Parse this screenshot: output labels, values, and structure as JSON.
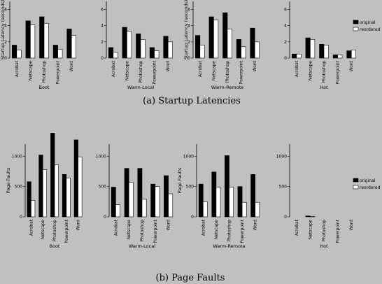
{
  "figure": {
    "captions": {
      "latency": "(a) Startup Latencies",
      "faults": "(b) Page Faults"
    },
    "legend_entries": [
      "original",
      "reordered"
    ],
    "colors": {
      "original": "#000000",
      "reordered": "#ffffff",
      "background": "#c0c0c0"
    }
  },
  "chart_data": [
    {
      "id": "lat-boot",
      "type": "bar",
      "xlabel": "Boot",
      "ylabel": "Startup Latency (seconds)",
      "categories": [
        "Acrobat",
        "Netscape",
        "Photoshop",
        "Powerpoint",
        "Word"
      ],
      "series": [
        {
          "name": "original",
          "values": [
            1.6,
            4.6,
            5.1,
            1.6,
            3.6
          ]
        },
        {
          "name": "reordered",
          "values": [
            1.0,
            4.1,
            4.3,
            1.1,
            2.8
          ]
        }
      ],
      "ylim": [
        0,
        7
      ],
      "yticks": [
        0,
        2,
        4,
        6
      ],
      "legend": "none"
    },
    {
      "id": "lat-warmlocal",
      "type": "bar",
      "xlabel": "Warm-Local",
      "ylabel": "",
      "categories": [
        "Acrobat",
        "Netscape",
        "Photoshop",
        "Powerpoint",
        "Word"
      ],
      "series": [
        {
          "name": "original",
          "values": [
            1.3,
            3.8,
            3.0,
            1.3,
            2.7
          ]
        },
        {
          "name": "reordered",
          "values": [
            0.7,
            3.3,
            2.3,
            0.9,
            2.0
          ]
        }
      ],
      "ylim": [
        0,
        7
      ],
      "yticks": [
        0,
        2,
        4,
        6
      ],
      "legend": "none"
    },
    {
      "id": "lat-warmremote",
      "type": "bar",
      "xlabel": "Warm-Remote",
      "ylabel": "Startup Latency (seconds)",
      "categories": [
        "Acrobat",
        "Netscape",
        "Photoshop",
        "Powerpoint",
        "Word"
      ],
      "series": [
        {
          "name": "original",
          "values": [
            2.8,
            5.1,
            5.6,
            2.3,
            3.7
          ]
        },
        {
          "name": "reordered",
          "values": [
            1.6,
            4.7,
            3.6,
            1.4,
            2.0
          ]
        }
      ],
      "ylim": [
        0,
        7
      ],
      "yticks": [
        0,
        2,
        4,
        6
      ],
      "legend": "none"
    },
    {
      "id": "lat-hot",
      "type": "bar",
      "xlabel": "Hot",
      "ylabel": "",
      "categories": [
        "Acrobat",
        "Netscape",
        "Photoshop",
        "Powerpoint",
        "Word"
      ],
      "series": [
        {
          "name": "original",
          "values": [
            0.5,
            2.5,
            1.7,
            0.4,
            0.9
          ]
        },
        {
          "name": "reordered",
          "values": [
            0.5,
            2.3,
            1.6,
            0.4,
            1.0
          ]
        }
      ],
      "ylim": [
        0,
        7
      ],
      "yticks": [
        0,
        2,
        4,
        6
      ],
      "legend": "right"
    },
    {
      "id": "pf-boot",
      "type": "bar",
      "xlabel": "Boot",
      "ylabel": "Page Faults",
      "categories": [
        "Acrobat",
        "Netscape",
        "Photoshop",
        "Powerpoint",
        "Word"
      ],
      "series": [
        {
          "name": "original",
          "values": [
            580,
            1020,
            1380,
            700,
            1270
          ]
        },
        {
          "name": "reordered",
          "values": [
            270,
            780,
            860,
            640,
            990
          ]
        }
      ],
      "ylim": [
        0,
        1200
      ],
      "yticks": [
        0,
        500,
        1000
      ],
      "legend": "none"
    },
    {
      "id": "pf-warmlocal",
      "type": "bar",
      "xlabel": "Warm-Local",
      "ylabel": "",
      "categories": [
        "Acrobat",
        "Netscape",
        "Photoshop",
        "Powerpoint",
        "Word"
      ],
      "series": [
        {
          "name": "original",
          "values": [
            490,
            800,
            800,
            540,
            680
          ]
        },
        {
          "name": "reordered",
          "values": [
            200,
            570,
            290,
            500,
            380
          ]
        }
      ],
      "ylim": [
        0,
        1200
      ],
      "yticks": [
        0,
        500,
        1000
      ],
      "legend": "none"
    },
    {
      "id": "pf-warmremote",
      "type": "bar",
      "xlabel": "Warm-Remote",
      "ylabel": "Page Faults",
      "categories": [
        "Acrobat",
        "Netscape",
        "Photoshop",
        "Powerpoint",
        "Word"
      ],
      "series": [
        {
          "name": "original",
          "values": [
            540,
            740,
            1010,
            500,
            700
          ]
        },
        {
          "name": "reordered",
          "values": [
            250,
            490,
            490,
            240,
            240
          ]
        }
      ],
      "ylim": [
        0,
        1200
      ],
      "yticks": [
        0,
        500,
        1000
      ],
      "legend": "none"
    },
    {
      "id": "pf-hot",
      "type": "bar",
      "xlabel": "Hot",
      "ylabel": "",
      "categories": [
        "Acrobat",
        "Netscape",
        "Photoshop",
        "Powerpoint",
        "Word"
      ],
      "series": [
        {
          "name": "original",
          "values": [
            0,
            15,
            0,
            0,
            0
          ]
        },
        {
          "name": "reordered",
          "values": [
            0,
            5,
            0,
            0,
            0
          ]
        }
      ],
      "ylim": [
        0,
        1200
      ],
      "yticks": [
        0,
        500,
        1000
      ],
      "legend": "right"
    }
  ]
}
